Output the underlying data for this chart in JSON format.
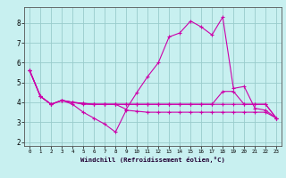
{
  "xlabel": "Windchill (Refroidissement éolien,°C)",
  "xlim": [
    -0.5,
    23.5
  ],
  "ylim": [
    1.8,
    8.8
  ],
  "xticks": [
    0,
    1,
    2,
    3,
    4,
    5,
    6,
    7,
    8,
    9,
    10,
    11,
    12,
    13,
    14,
    15,
    16,
    17,
    18,
    19,
    20,
    21,
    22,
    23
  ],
  "yticks": [
    2,
    3,
    4,
    5,
    6,
    7,
    8
  ],
  "bg_color": "#c8f0f0",
  "grid_color": "#99cccc",
  "line_color": "#cc00aa",
  "line1_y": [
    5.6,
    4.3,
    3.9,
    4.1,
    4.0,
    3.9,
    3.9,
    3.9,
    3.9,
    3.9,
    3.9,
    3.9,
    3.9,
    3.9,
    3.9,
    3.9,
    3.9,
    3.9,
    3.9,
    3.9,
    3.9,
    3.9,
    3.9,
    3.2
  ],
  "line2_y": [
    5.6,
    4.3,
    3.9,
    4.1,
    3.9,
    3.5,
    3.2,
    2.9,
    2.5,
    3.6,
    3.55,
    3.5,
    3.5,
    3.5,
    3.5,
    3.5,
    3.5,
    3.5,
    3.5,
    3.5,
    3.5,
    3.5,
    3.5,
    3.2
  ],
  "line3_y": [
    5.6,
    4.3,
    3.9,
    4.1,
    4.0,
    3.95,
    3.9,
    3.9,
    3.9,
    3.65,
    4.5,
    5.3,
    6.0,
    7.3,
    7.5,
    8.1,
    7.8,
    7.4,
    8.3,
    4.7,
    4.8,
    3.7,
    3.6,
    3.2
  ],
  "line4_y": [
    5.6,
    4.3,
    3.9,
    4.1,
    4.0,
    3.95,
    3.9,
    3.9,
    3.9,
    3.9,
    3.9,
    3.9,
    3.9,
    3.9,
    3.9,
    3.9,
    3.9,
    3.9,
    4.55,
    4.55,
    3.9,
    3.9,
    3.9,
    3.2
  ]
}
